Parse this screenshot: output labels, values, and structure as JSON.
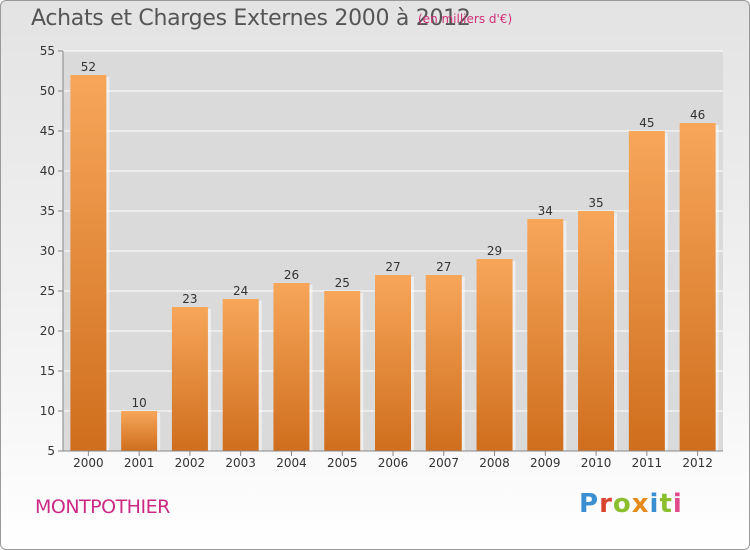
{
  "title": "Achats et Charges Externes 2000 à 2012",
  "subtitle": "(en milliers d'€)",
  "location": "MONTPOTHIER",
  "brand": {
    "text": "Proxiti",
    "letter_colors": [
      "#3a8fd1",
      "#d9442f",
      "#8bbf2e",
      "#e58b1c",
      "#3a8fd1",
      "#8bbf2e",
      "#e04a8a"
    ]
  },
  "chart_data": {
    "type": "bar",
    "title": "Achats et Charges Externes 2000 à 2012",
    "xlabel": "",
    "ylabel": "",
    "categories": [
      "2000",
      "2001",
      "2002",
      "2003",
      "2004",
      "2005",
      "2006",
      "2007",
      "2008",
      "2009",
      "2010",
      "2011",
      "2012"
    ],
    "values": [
      52,
      10,
      23,
      24,
      26,
      25,
      27,
      27,
      29,
      34,
      35,
      45,
      46
    ],
    "ylim": [
      5,
      55
    ],
    "yticks": [
      5,
      10,
      15,
      20,
      25,
      30,
      35,
      40,
      45,
      50,
      55
    ],
    "grid": true,
    "data_labels": true,
    "bar_color_top": "#f7a65a",
    "bar_color_bottom": "#cf6e1d",
    "grid_color": "#ffffff",
    "axis_color": "#888888"
  }
}
